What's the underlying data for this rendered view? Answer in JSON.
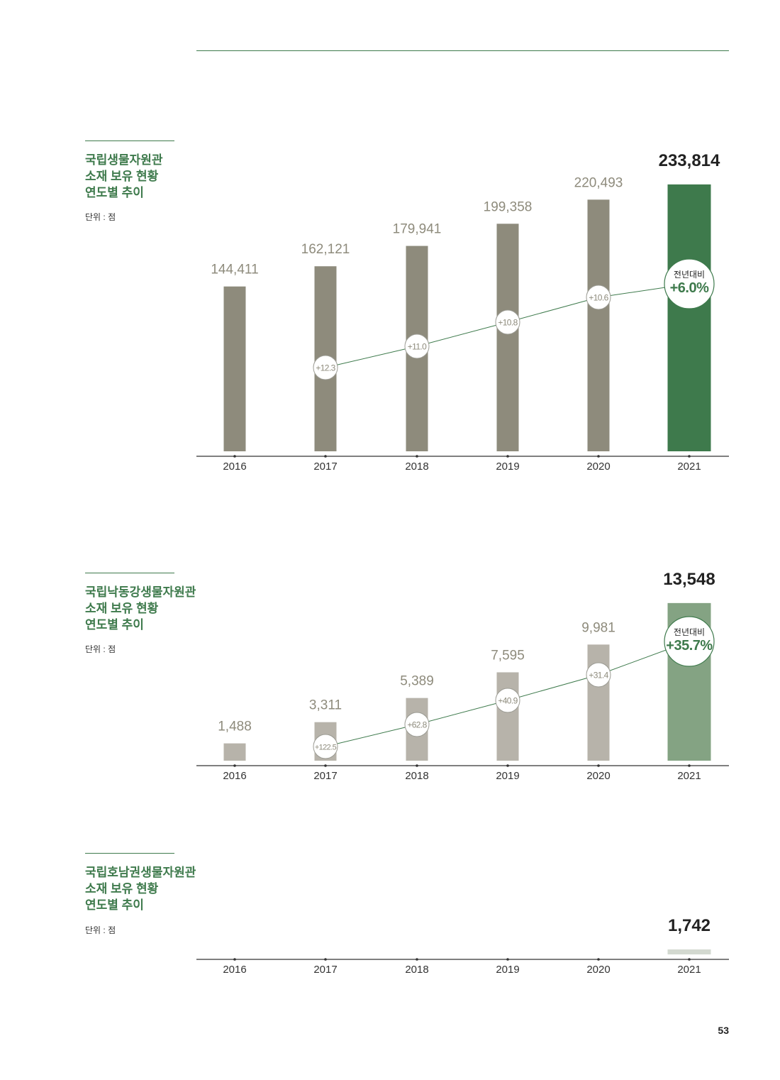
{
  "page_number": "53",
  "colors": {
    "accent": "#3e7a4c",
    "bar_gray": "#8e8b7c",
    "bar_light": "#b7b3aa",
    "bar_green_light": "#84a383",
    "bar_green_pale": "#d3d9d0"
  },
  "sections": [
    {
      "title_lines": [
        "국립생물자원관",
        "소재 보유 현황",
        "연도별 추이"
      ],
      "unit": "단위 : 점"
    },
    {
      "title_lines": [
        "국립낙동강생물자원관",
        "소재 보유 현황",
        "연도별 추이"
      ],
      "unit": "단위 : 점"
    },
    {
      "title_lines": [
        "국립호남권생물자원관",
        "소재 보유 현황",
        "연도별 추이"
      ],
      "unit": "단위 : 점"
    }
  ],
  "chart_data": [
    {
      "type": "bar",
      "categories": [
        "2016",
        "2017",
        "2018",
        "2019",
        "2020",
        "2021"
      ],
      "values": [
        144411,
        162121,
        179941,
        199358,
        220493,
        233814
      ],
      "value_labels": [
        "144,411",
        "162,121",
        "179,941",
        "199,358",
        "220,493",
        "233,814"
      ],
      "growth_labels": [
        "",
        "+12.3",
        "+11.0",
        "+10.8",
        "+10.6",
        "+6.0%"
      ],
      "growth_values": [
        null,
        12.3,
        11.0,
        10.8,
        10.6,
        6.0
      ],
      "highlight_label": "전년대비",
      "ylim": [
        0,
        235000
      ]
    },
    {
      "type": "bar",
      "categories": [
        "2016",
        "2017",
        "2018",
        "2019",
        "2020",
        "2021"
      ],
      "values": [
        1488,
        3311,
        5389,
        7595,
        9981,
        13548
      ],
      "value_labels": [
        "1,488",
        "3,311",
        "5,389",
        "7,595",
        "9,981",
        "13,548"
      ],
      "growth_labels": [
        "",
        "+122.5",
        "+62.8",
        "+40.9",
        "+31.4",
        "+35.7%"
      ],
      "growth_values": [
        null,
        122.5,
        62.8,
        40.9,
        31.4,
        35.7
      ],
      "highlight_label": "전년대비",
      "ylim": [
        0,
        13600
      ]
    },
    {
      "type": "bar",
      "categories": [
        "2016",
        "2017",
        "2018",
        "2019",
        "2020",
        "2021"
      ],
      "values": [
        null,
        null,
        null,
        null,
        null,
        1742
      ],
      "value_labels": [
        "",
        "",
        "",
        "",
        "",
        "1,742"
      ],
      "growth_labels": [
        "",
        "",
        "",
        "",
        "",
        ""
      ],
      "growth_values": [
        null,
        null,
        null,
        null,
        null,
        null
      ],
      "highlight_label": "",
      "ylim": [
        0,
        235000
      ]
    }
  ]
}
